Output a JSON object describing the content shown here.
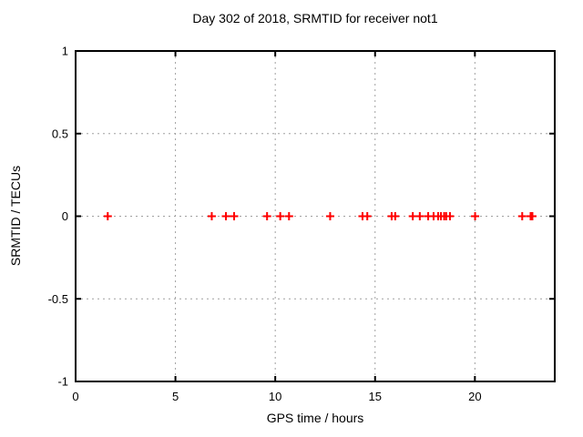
{
  "chart_data": {
    "type": "scatter",
    "title": "Day 302 of 2018, SRMTID for receiver not1",
    "xlabel": "GPS time / hours",
    "ylabel": "SRMTID / TECUs",
    "xlim": [
      0,
      24
    ],
    "ylim": [
      -1,
      1
    ],
    "xticks": [
      0,
      5,
      10,
      15,
      20
    ],
    "xtick_labels": [
      "0",
      "5",
      "10",
      "15",
      "20"
    ],
    "yticks": [
      1,
      0.5,
      0,
      -0.5,
      -1
    ],
    "ytick_labels": [
      "1",
      "0.5",
      "0",
      "-0.5",
      "-1"
    ],
    "grid": true,
    "legend": false,
    "series": [
      {
        "name": "SRMTID",
        "marker": "plus",
        "color": "#ff0000",
        "x": [
          1.61,
          6.82,
          7.53,
          7.94,
          9.59,
          10.25,
          10.69,
          12.75,
          14.37,
          14.61,
          15.83,
          16.01,
          16.89,
          17.24,
          17.66,
          17.93,
          18.16,
          18.3,
          18.46,
          18.56,
          18.75,
          20.01,
          22.37,
          22.79,
          22.88
        ],
        "y": [
          0,
          0,
          0,
          0,
          0,
          0,
          0,
          0,
          0,
          0,
          0,
          0,
          0,
          0,
          0,
          0,
          0,
          0,
          0,
          0,
          0,
          0,
          0,
          0,
          0
        ]
      }
    ]
  },
  "colors": {
    "marker": "#ff0000",
    "grid": "#a0a0a0",
    "border": "#000000",
    "text": "#000000",
    "background": "#ffffff"
  }
}
